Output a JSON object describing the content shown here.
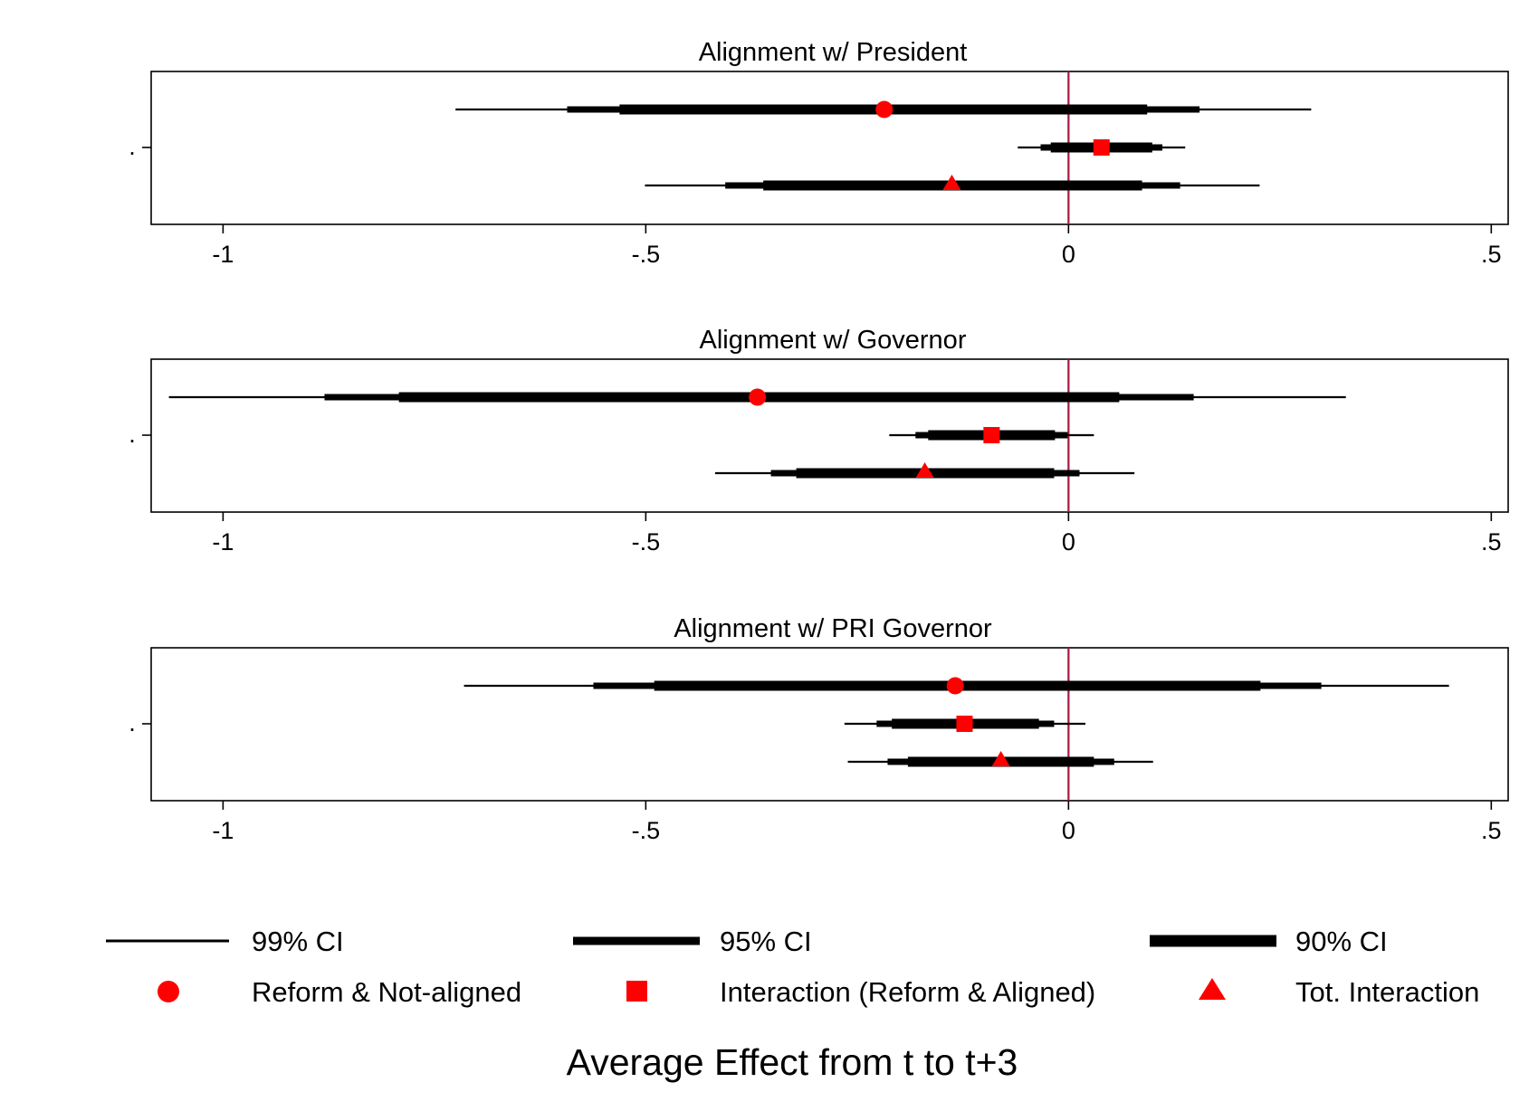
{
  "chart_data": {
    "type": "coefficient-plot",
    "xlabel": "Average Effect from t to t+3",
    "xlim": [
      -1.085,
      0.52
    ],
    "x_ticks": [
      -1,
      -0.5,
      0,
      0.5
    ],
    "x_tick_labels": [
      "-1",
      "-.5",
      "0",
      ".5"
    ],
    "y_tick_label": ".",
    "reference_line": 0,
    "colors": {
      "marker": "#ff0000",
      "ci": "#000000",
      "reference_line": "#a8173f"
    },
    "legend": {
      "position": "bottom",
      "ci_entries": [
        {
          "key": "ci99",
          "label": "99% CI"
        },
        {
          "key": "ci95",
          "label": "95% CI"
        },
        {
          "key": "ci90",
          "label": "90% CI"
        }
      ],
      "marker_entries": [
        {
          "shape": "circle",
          "label": "Reform & Not-aligned"
        },
        {
          "shape": "square",
          "label": "Interaction (Reform & Aligned)"
        },
        {
          "shape": "triangle",
          "label": "Tot. Interaction"
        }
      ]
    },
    "panels": [
      {
        "title": "Alignment w/ President",
        "series": [
          {
            "name": "Reform & Not-aligned",
            "shape": "circle",
            "estimate": -0.218,
            "ci90": [
              -0.531,
              0.093
            ],
            "ci95": [
              -0.593,
              0.155
            ],
            "ci99": [
              -0.725,
              0.287
            ]
          },
          {
            "name": "Interaction (Reform & Aligned)",
            "shape": "square",
            "estimate": 0.039,
            "ci90": [
              -0.021,
              0.099
            ],
            "ci95": [
              -0.033,
              0.111
            ],
            "ci99": [
              -0.06,
              0.138
            ]
          },
          {
            "name": "Tot. Interaction",
            "shape": "triangle",
            "estimate": -0.138,
            "ci90": [
              -0.361,
              0.087
            ],
            "ci95": [
              -0.406,
              0.132
            ],
            "ci99": [
              -0.501,
              0.226
            ]
          }
        ]
      },
      {
        "title": "Alignment w/ Governor",
        "series": [
          {
            "name": "Reform & Not-aligned",
            "shape": "circle",
            "estimate": -0.368,
            "ci90": [
              -0.792,
              0.06
            ],
            "ci95": [
              -0.88,
              0.148
            ],
            "ci99": [
              -1.064,
              0.328
            ]
          },
          {
            "name": "Interaction (Reform & Aligned)",
            "shape": "square",
            "estimate": -0.091,
            "ci90": [
              -0.166,
              -0.016
            ],
            "ci95": [
              -0.181,
              -0.001
            ],
            "ci99": [
              -0.212,
              0.03
            ]
          },
          {
            "name": "Tot. Interaction",
            "shape": "triangle",
            "estimate": -0.17,
            "ci90": [
              -0.322,
              -0.017
            ],
            "ci95": [
              -0.352,
              0.013
            ],
            "ci99": [
              -0.418,
              0.078
            ]
          }
        ]
      },
      {
        "title": "Alignment w/ PRI Governor",
        "series": [
          {
            "name": "Reform & Not-aligned",
            "shape": "circle",
            "estimate": -0.134,
            "ci90": [
              -0.49,
              0.227
            ],
            "ci95": [
              -0.562,
              0.299
            ],
            "ci99": [
              -0.715,
              0.45
            ]
          },
          {
            "name": "Interaction (Reform & Aligned)",
            "shape": "square",
            "estimate": -0.123,
            "ci90": [
              -0.209,
              -0.035
            ],
            "ci95": [
              -0.227,
              -0.017
            ],
            "ci99": [
              -0.265,
              0.02
            ]
          },
          {
            "name": "Tot. Interaction",
            "shape": "triangle",
            "estimate": -0.08,
            "ci90": [
              -0.19,
              0.03
            ],
            "ci95": [
              -0.214,
              0.054
            ],
            "ci99": [
              -0.261,
              0.1
            ]
          }
        ]
      }
    ]
  }
}
